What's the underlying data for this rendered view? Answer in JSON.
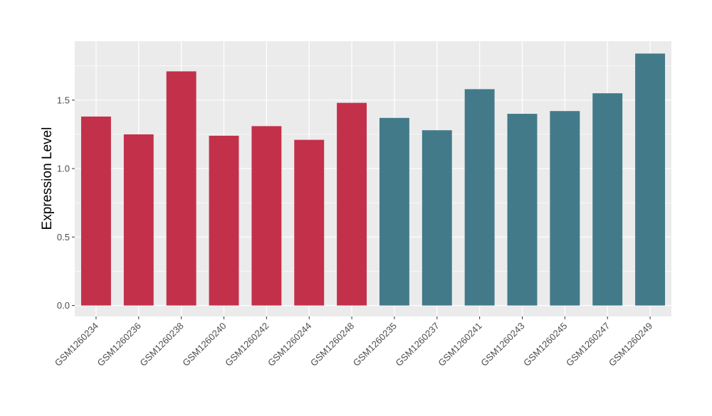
{
  "chart_data": {
    "type": "bar",
    "title": "",
    "xlabel": "",
    "ylabel": "Expression Level",
    "ylim": [
      -0.08,
      1.93
    ],
    "yticks": [
      0.0,
      0.5,
      1.0,
      1.5
    ],
    "ytick_labels": [
      "0.0",
      "0.5",
      "1.0",
      "1.5"
    ],
    "grid": true,
    "legend": "none",
    "panel_color": "#EBEBEB",
    "grid_color": "#FFFFFF",
    "categories": [
      "GSM1260234",
      "GSM1260236",
      "GSM1260238",
      "GSM1260240",
      "GSM1260242",
      "GSM1260244",
      "GSM1260248",
      "GSM1260235",
      "GSM1260237",
      "GSM1260241",
      "GSM1260243",
      "GSM1260245",
      "GSM1260247",
      "GSM1260249"
    ],
    "values": [
      1.38,
      1.25,
      1.71,
      1.24,
      1.31,
      1.21,
      1.48,
      1.37,
      1.28,
      1.58,
      1.4,
      1.42,
      1.55,
      1.84
    ],
    "bar_colors": [
      "#C3304A",
      "#C3304A",
      "#C3304A",
      "#C3304A",
      "#C3304A",
      "#C3304A",
      "#C3304A",
      "#427A8A",
      "#427A8A",
      "#427A8A",
      "#427A8A",
      "#427A8A",
      "#427A8A",
      "#427A8A"
    ]
  }
}
